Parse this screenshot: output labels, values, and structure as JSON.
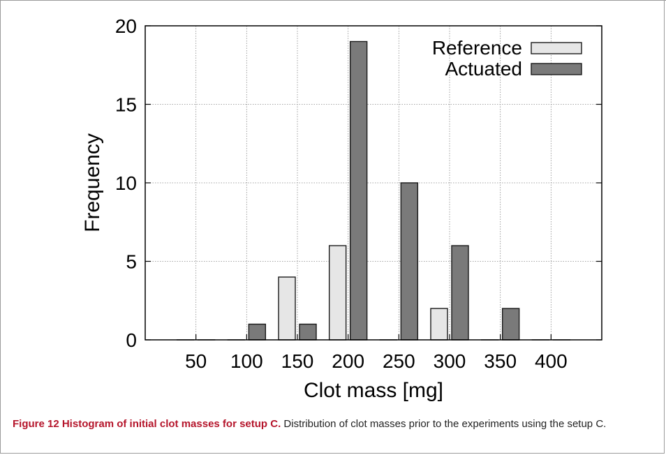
{
  "chart_data": {
    "type": "bar",
    "title": "",
    "xlabel": "Clot mass [mg]",
    "ylabel": "Frequency",
    "categories": [
      "50",
      "100",
      "150",
      "200",
      "250",
      "300",
      "350",
      "400"
    ],
    "ylim": [
      0,
      20
    ],
    "yticks": [
      "0",
      "5",
      "10",
      "15",
      "20"
    ],
    "grid": true,
    "legend_position": "top-right",
    "series": [
      {
        "name": "Reference",
        "values": [
          0,
          0,
          4,
          6,
          0,
          2,
          0,
          0
        ],
        "color": "#e6e6e6"
      },
      {
        "name": "Actuated",
        "values": [
          0,
          1,
          1,
          19,
          10,
          6,
          2,
          0
        ],
        "color": "#7a7a7a"
      }
    ]
  },
  "caption": {
    "title": "Figure 12 Histogram of initial clot masses for setup C.",
    "text": " Distribution of clot masses prior to the experiments using the setup C."
  },
  "colors": {
    "caption_accent": "#b5152b",
    "bar_stroke": "#1a1a1a",
    "grid": "#888888"
  }
}
